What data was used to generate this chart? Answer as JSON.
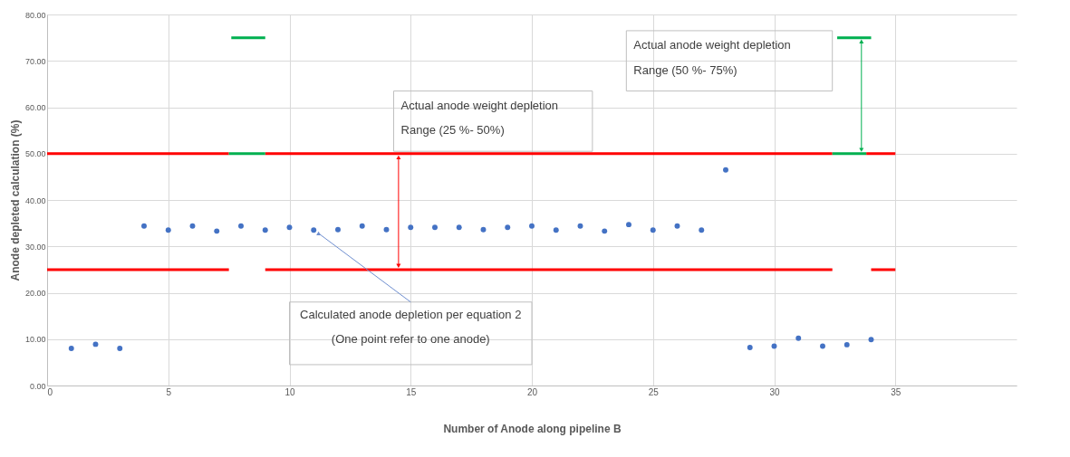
{
  "chart_data": {
    "type": "scatter",
    "xlabel": "Number of Anode along pipeline B",
    "ylabel": "Anode depleted calculation (%)",
    "xlim": [
      0,
      40
    ],
    "xticks": [
      0,
      5,
      10,
      15,
      20,
      25,
      30,
      35
    ],
    "ylim": [
      0,
      80
    ],
    "yticks": [
      {
        "value": 0,
        "label": "0.00"
      },
      {
        "value": 10,
        "label": "10.00"
      },
      {
        "value": 20,
        "label": "20.00"
      },
      {
        "value": 30,
        "label": "30.00"
      },
      {
        "value": 40,
        "label": "40.00"
      },
      {
        "value": 50,
        "label": "50.00"
      },
      {
        "value": 60,
        "label": "60.00"
      },
      {
        "value": 70,
        "label": "70.00"
      },
      {
        "value": 80,
        "label": "80.00"
      }
    ],
    "grid": true,
    "series": [
      {
        "type": "scatter",
        "marker": "circle",
        "color": "#4472c4",
        "x": [
          1,
          2,
          3,
          4,
          5,
          6,
          7,
          8,
          9,
          10,
          11,
          12,
          13,
          14,
          15,
          16,
          17,
          18,
          19,
          20,
          21,
          22,
          23,
          24,
          25,
          26,
          27,
          28,
          29,
          30,
          31,
          32,
          33,
          34
        ],
        "values": [
          8.0,
          8.9,
          8.0,
          34.4,
          33.5,
          34.4,
          33.3,
          34.4,
          33.5,
          34.1,
          33.5,
          33.6,
          34.4,
          33.6,
          34.1,
          34.1,
          34.1,
          33.6,
          34.1,
          34.4,
          33.5,
          34.4,
          33.3,
          34.7,
          33.5,
          34.4,
          33.5,
          46.5,
          8.2,
          8.5,
          10.2,
          8.5,
          8.8,
          9.9
        ]
      },
      {
        "type": "line",
        "color": "#ff0000",
        "x": [
          0,
          7.5,
          8,
          9,
          32.4,
          33,
          33.8,
          35
        ],
        "values": [
          50,
          50,
          null,
          50,
          50,
          null,
          50,
          50
        ]
      },
      {
        "type": "line",
        "color": "#ff0000",
        "x": [
          0,
          7.5,
          8,
          9,
          32.4,
          33,
          34,
          35
        ],
        "values": [
          25,
          25,
          null,
          25,
          25,
          null,
          25,
          25
        ]
      },
      {
        "type": "line",
        "color": "#00b050",
        "x": [
          7.5,
          9,
          20,
          32.4,
          33.8
        ],
        "values": [
          50,
          50,
          null,
          50,
          50
        ]
      },
      {
        "type": "line",
        "color": "#00b050",
        "x": [
          7.6,
          9,
          20,
          32.6,
          34
        ],
        "values": [
          75,
          75,
          null,
          75,
          75
        ]
      }
    ],
    "annotations": [
      "Actual anode weight depletion",
      "Range (25 %- 50%)",
      "Actual anode weight depletion",
      "Range (50 %- 75%)",
      {
        "text": "Calculated anode depletion per equation 2",
        "x": 11,
        "y": 33.5
      },
      "(One point refer to one anode)"
    ]
  }
}
